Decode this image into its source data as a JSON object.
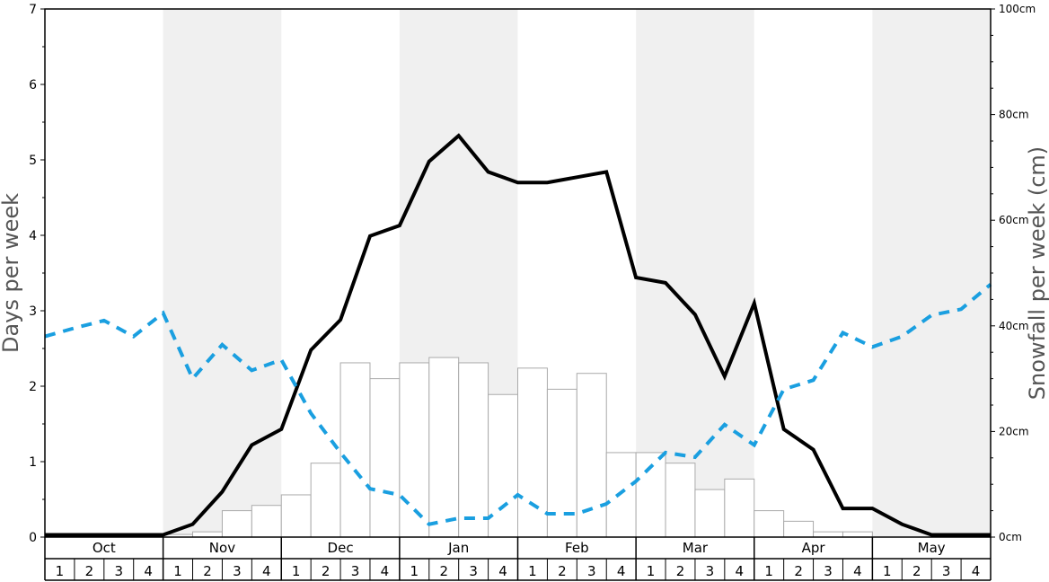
{
  "chart_data": {
    "type": "bar+line",
    "months": [
      "Oct",
      "Nov",
      "Dec",
      "Jan",
      "Feb",
      "Mar",
      "Apr",
      "May"
    ],
    "week_labels": [
      "1",
      "2",
      "3",
      "4"
    ],
    "y_left": {
      "label": "Days per week",
      "range": [
        0,
        7
      ],
      "ticks": [
        0,
        1,
        2,
        3,
        4,
        5,
        6,
        7
      ]
    },
    "y_right": {
      "label": "Snowfall per week (cm)",
      "range": [
        0,
        100
      ],
      "ticks": [
        "0cm",
        "20cm",
        "40cm",
        "60cm",
        "80cm",
        "100cm"
      ],
      "tick_values": [
        0,
        20,
        40,
        60,
        80,
        100
      ]
    },
    "series": [
      {
        "kind": "bar",
        "axis": "right",
        "values": [
          0,
          0,
          0,
          0,
          0.5,
          1,
          5,
          6,
          8,
          14,
          33,
          30,
          33,
          34,
          33,
          27,
          32,
          28,
          31,
          16,
          16,
          14,
          9,
          11,
          5,
          3,
          1,
          1,
          0,
          0,
          0,
          0
        ]
      },
      {
        "kind": "line",
        "style": "solid",
        "color": "#000000",
        "axis": "left",
        "values": [
          0.03,
          0.03,
          0.03,
          0.03,
          0.03,
          0.17,
          0.6,
          1.22,
          1.43,
          2.48,
          2.88,
          3.99,
          4.13,
          4.98,
          5.32,
          4.84,
          4.7,
          4.7,
          4.77,
          4.84,
          3.44,
          3.37,
          2.95,
          2.13,
          3.1,
          1.43,
          1.16,
          0.38,
          0.38,
          0.17,
          0.03,
          0.03,
          0.03
        ]
      },
      {
        "kind": "line",
        "style": "dashed",
        "color": "#1a9fe0",
        "axis": "left",
        "values": [
          2.66,
          2.77,
          2.87,
          2.66,
          2.97,
          2.1,
          2.55,
          2.21,
          2.35,
          1.64,
          1.12,
          0.64,
          0.56,
          0.17,
          0.25,
          0.25,
          0.56,
          0.31,
          0.31,
          0.44,
          0.74,
          1.12,
          1.06,
          1.49,
          1.22,
          1.96,
          2.08,
          2.71,
          2.52,
          2.66,
          2.94,
          3.02,
          3.35
        ]
      }
    ],
    "colors": {
      "shade": "#f0f0f0",
      "bar_fill": "#ffffff",
      "bar_stroke": "#aaaaaa",
      "snow_line": "#000000",
      "dash_line": "#1a9fe0"
    }
  }
}
